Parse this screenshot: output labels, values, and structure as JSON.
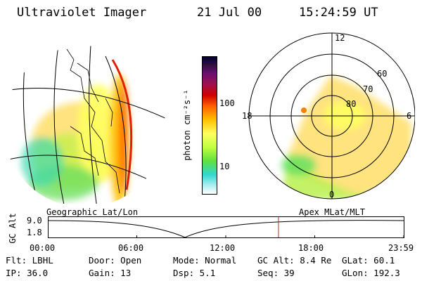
{
  "header": {
    "title": "Ultraviolet Imager",
    "date": "21 Jul 00",
    "time": "15:24:59 UT"
  },
  "colorbar": {
    "unit_label": "photon cm⁻²s⁻¹",
    "ticks": [
      "100",
      "10"
    ],
    "colors": [
      "#000030",
      "#301040",
      "#6a1070",
      "#a01050",
      "#d00000",
      "#ff6000",
      "#ffc000",
      "#ffff60",
      "#c0ff40",
      "#60e040",
      "#30d8d0",
      "#b0f0f0",
      "#ffffff"
    ]
  },
  "left_panel": {
    "label": "Geographic Lat/Lon"
  },
  "right_panel": {
    "label": "Apex MLat/MLT",
    "mlt_labels": {
      "top": "12",
      "left": "18",
      "right": "6",
      "bottom": "0"
    },
    "lat_labels": [
      "60",
      "70",
      "80"
    ]
  },
  "altitude_plot": {
    "ylabel": "GC Alt",
    "ytick_top": "9.0",
    "ytick_bottom": "1.8",
    "xticks": [
      "00:00",
      "06:00",
      "12:00",
      "18:00",
      "23:59"
    ],
    "current_time_fraction": 0.648
  },
  "info": {
    "filter_label": "Flt:",
    "filter_value": "LBHL",
    "door_label": "Door:",
    "door_value": "Open",
    "mode_label": "Mode:",
    "mode_value": "Normal",
    "gcalt_label": "GC Alt:",
    "gcalt_value": "8.4 Re",
    "glat_label": "GLat:",
    "glat_value": "60.1",
    "ip_label": "IP:",
    "ip_value": "36.0",
    "gain_label": "Gain:",
    "gain_value": "13",
    "dsp_label": "Dsp:",
    "dsp_value": "5.1",
    "seq_label": "Seq:",
    "seq_value": "39",
    "glon_label": "GLon:",
    "glon_value": "192.3"
  }
}
